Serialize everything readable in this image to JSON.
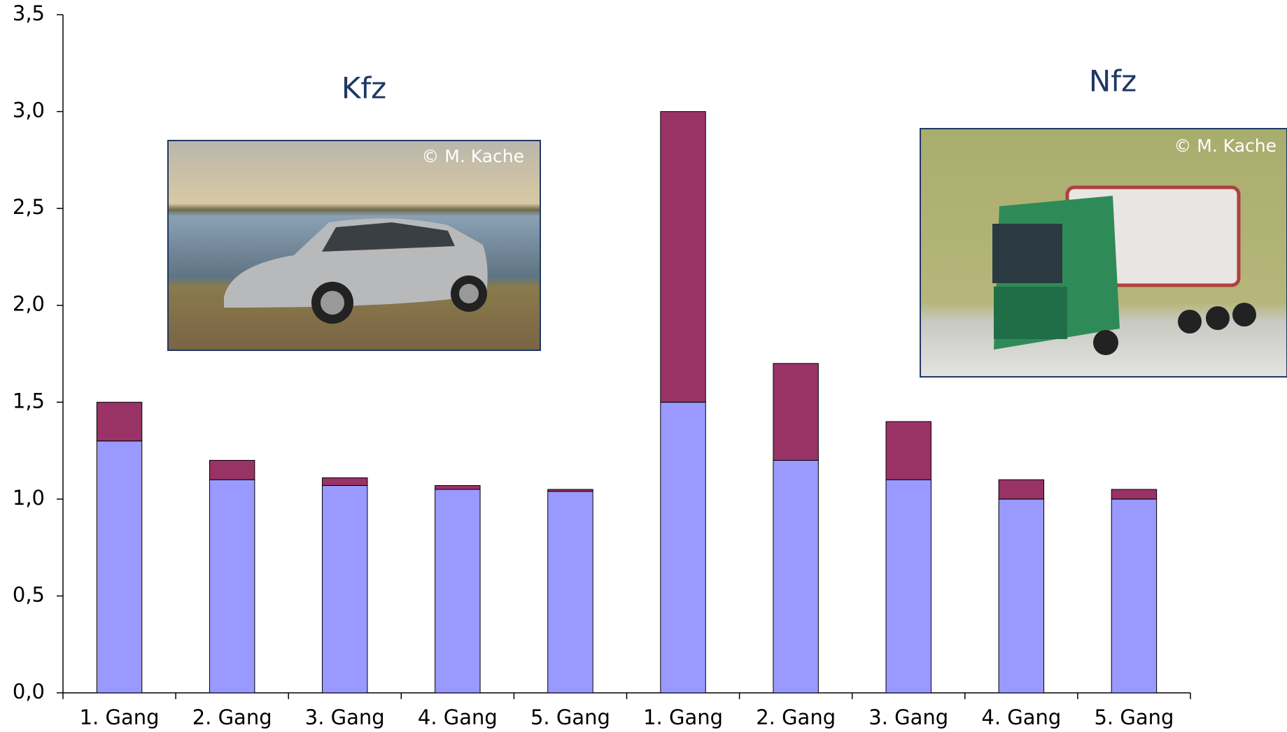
{
  "chart_data": {
    "type": "stacked-bar",
    "categories": [
      "1. Gang",
      "2. Gang",
      "3. Gang",
      "4. Gang",
      "5. Gang",
      "1. Gang",
      "2. Gang",
      "3. Gang",
      "4. Gang",
      "5. Gang"
    ],
    "series": [
      {
        "color": "#9999ff",
        "values": [
          1.3,
          1.1,
          1.07,
          1.05,
          1.04,
          1.5,
          1.2,
          1.1,
          1.0,
          1.0
        ]
      },
      {
        "color": "#993366",
        "values": [
          0.2,
          0.1,
          0.04,
          0.02,
          0.01,
          1.5,
          0.5,
          0.3,
          0.1,
          0.05
        ]
      }
    ],
    "ylim": [
      0,
      3.5
    ],
    "yticks": [
      {
        "value": 0,
        "label": "0,0"
      },
      {
        "value": 0.5,
        "label": "0,5"
      },
      {
        "value": 1,
        "label": "1,0"
      },
      {
        "value": 1.5,
        "label": "1,5"
      },
      {
        "value": 2,
        "label": "2,0"
      },
      {
        "value": 2.5,
        "label": "2,5"
      },
      {
        "value": 3,
        "label": "3,0"
      },
      {
        "value": 3.5,
        "label": "3,5"
      }
    ],
    "annotations": [
      "Kfz",
      "Nfz",
      "© M. Kache",
      "© M. Kache"
    ]
  }
}
